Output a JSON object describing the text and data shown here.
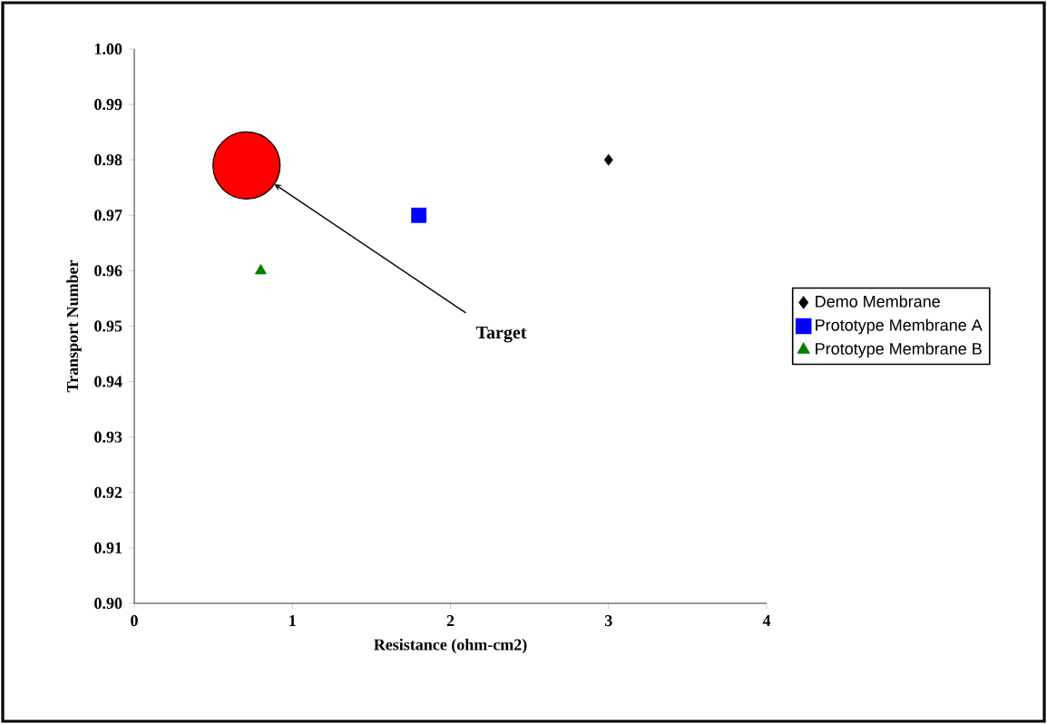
{
  "chart_data": {
    "type": "scatter",
    "xlabel": "Resistance (ohm-cm2)",
    "ylabel": "Transport Number",
    "xlim": [
      0,
      4
    ],
    "xticks": [
      0,
      1,
      2,
      3,
      4
    ],
    "ylim": [
      0.9,
      1.0
    ],
    "yticks": [
      {
        "value": 0.9,
        "label": "0.90"
      },
      0.91,
      0.92,
      0.93,
      0.94,
      0.95,
      0.96,
      0.97,
      0.98,
      0.99,
      {
        "value": 1.0,
        "label": "1.00"
      }
    ],
    "series": [
      {
        "name": "Demo Membrane",
        "color": "#000000",
        "marker": "diamond",
        "x": [
          3.0
        ],
        "values": [
          0.98
        ]
      },
      {
        "name": "Prototype Membrane A",
        "color": "#0000ff",
        "marker": "square",
        "x": [
          1.8
        ],
        "values": [
          0.97
        ]
      },
      {
        "name": "Prototype Membrane B",
        "color": "#008000",
        "marker": "triangle",
        "x": [
          0.8
        ],
        "values": [
          0.96
        ]
      },
      {
        "type": "bubble",
        "color": "#ff0000",
        "marker": "circle",
        "x": [
          0.71
        ],
        "values": [
          0.979
        ],
        "sizes": [
          1
        ]
      }
    ],
    "annotations": [
      "Target"
    ],
    "legend": "right"
  }
}
